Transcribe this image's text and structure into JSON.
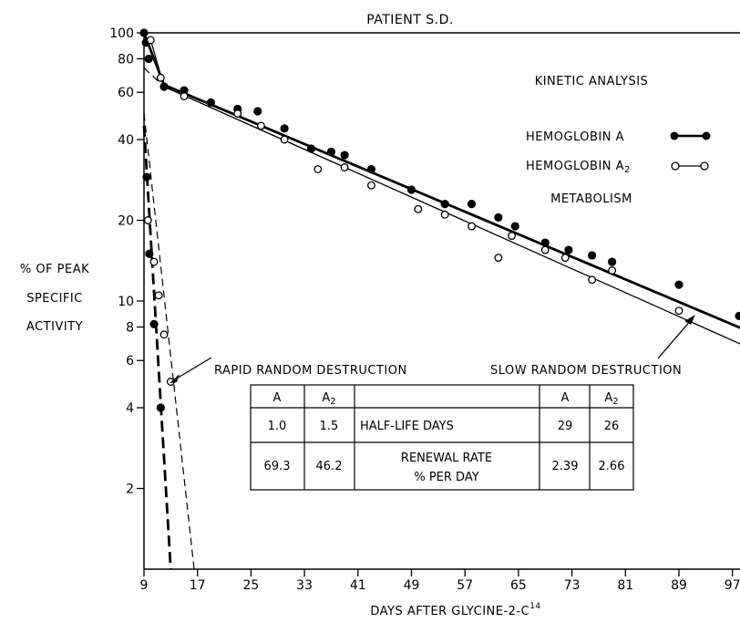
{
  "chart_data": {
    "type": "scatter",
    "title": "PATIENT S.D.",
    "xlabel": "DAYS AFTER GLYCINE-2-C",
    "xlabel_superscript": "14",
    "ylabel": [
      "% OF PEAK",
      "SPECIFIC",
      "ACTIVITY"
    ],
    "yscale": "log",
    "ylim": [
      1,
      100
    ],
    "xlim": [
      9,
      100
    ],
    "x_ticks": [
      "9",
      "17",
      "25",
      "33",
      "41",
      "49",
      "57",
      "65",
      "73",
      "81",
      "89",
      "97"
    ],
    "y_ticks": [
      "100",
      "80",
      "60",
      "40",
      "20",
      "10",
      "8",
      "6",
      "4",
      "2"
    ],
    "grid": false,
    "annotations": [
      "KINETIC ANALYSIS",
      "METABOLISM",
      "RAPID RANDOM DESTRUCTION",
      "SLOW RANDOM DESTRUCTION"
    ],
    "legend": {
      "placement": "right",
      "entries": [
        "HEMOGLOBIN A",
        "HEMOGLOBIN A2"
      ]
    },
    "series": [
      {
        "name": "HEMOGLOBIN A",
        "marker": "filled",
        "points": [
          [
            9,
            100
          ],
          [
            9.3,
            92
          ],
          [
            9.7,
            80
          ],
          [
            12,
            63
          ],
          [
            15,
            61
          ],
          [
            19,
            55
          ],
          [
            23,
            52
          ],
          [
            26,
            51
          ],
          [
            30,
            44
          ],
          [
            34,
            37
          ],
          [
            37,
            36
          ],
          [
            39,
            35
          ],
          [
            43,
            31
          ],
          [
            49,
            26
          ],
          [
            54,
            23
          ],
          [
            58,
            23
          ],
          [
            62,
            20.5
          ],
          [
            64.5,
            19
          ],
          [
            69,
            16.5
          ],
          [
            72.5,
            15.5
          ],
          [
            76,
            14.8
          ],
          [
            79,
            14
          ],
          [
            89,
            11.5
          ],
          [
            98,
            8.8
          ]
        ],
        "points_rapid": [
          [
            9.4,
            29
          ],
          [
            9.8,
            15
          ],
          [
            10.5,
            8.2
          ],
          [
            11.5,
            4
          ]
        ]
      },
      {
        "name": "HEMOGLOBIN A2",
        "marker": "open",
        "points": [
          [
            10,
            94
          ],
          [
            11.5,
            68
          ],
          [
            15,
            58
          ],
          [
            23,
            50
          ],
          [
            26.5,
            45
          ],
          [
            30,
            40
          ],
          [
            35,
            31
          ],
          [
            39,
            31.5
          ],
          [
            43,
            27
          ],
          [
            50,
            22
          ],
          [
            54,
            21
          ],
          [
            58,
            19
          ],
          [
            62,
            14.5
          ],
          [
            64,
            17.5
          ],
          [
            69,
            15.5
          ],
          [
            72,
            14.5
          ],
          [
            76,
            12
          ],
          [
            79,
            13
          ],
          [
            89,
            9.2
          ]
        ],
        "points_rapid": [
          [
            9.6,
            20
          ],
          [
            10.5,
            14
          ],
          [
            11.2,
            10.5
          ],
          [
            12,
            7.5
          ],
          [
            13,
            5
          ]
        ]
      }
    ],
    "lines": [
      {
        "name": "HEMOGLOBIN A slow destruction",
        "style": "solid-bold",
        "from": [
          12,
          64
        ],
        "to": [
          100,
          7.6
        ]
      },
      {
        "name": "HEMOGLOBIN A2 slow destruction",
        "style": "solid",
        "from": [
          12,
          63
        ],
        "to": [
          100,
          6.6
        ]
      },
      {
        "name": "HEMOGLOBIN A early",
        "style": "solid-bold",
        "from": [
          9,
          100
        ],
        "to": [
          12,
          64
        ]
      },
      {
        "name": "HEMOGLOBIN A2 early",
        "style": "solid",
        "from": [
          10,
          94
        ],
        "to": [
          12,
          63
        ]
      },
      {
        "name": "slow extrapolation",
        "style": "dashed",
        "from": [
          9,
          74
        ],
        "to": [
          12,
          63
        ]
      },
      {
        "name": "HEMOGLOBIN A rapid destruction",
        "style": "dashed-bold",
        "from": [
          9,
          45
        ],
        "to": [
          13,
          1
        ]
      },
      {
        "name": "HEMOGLOBIN A2 rapid destruction",
        "style": "dashed",
        "from": [
          9,
          50
        ],
        "to": [
          16.5,
          1
        ]
      }
    ],
    "table": {
      "header": [
        "A",
        "A2",
        "",
        "A",
        "A2"
      ],
      "rows": [
        [
          "1.0",
          "1.5",
          "HALF-LIFE DAYS",
          "29",
          "26"
        ],
        [
          "69.3",
          "46.2",
          "RENEWAL RATE % PER DAY",
          "2.39",
          "2.66"
        ]
      ],
      "row2_label_lines": [
        "RENEWAL RATE",
        "% PER DAY"
      ]
    }
  }
}
